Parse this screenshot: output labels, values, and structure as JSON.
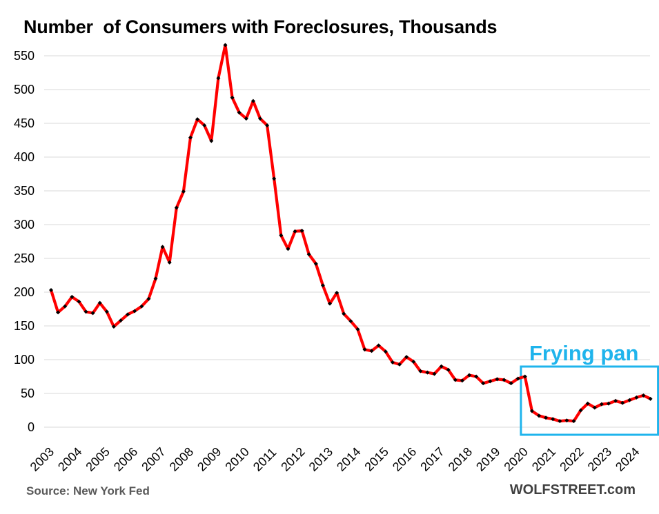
{
  "chart_data": {
    "type": "line",
    "title": "Number  of Consumers with Foreclosures, Thousands",
    "xlabel": "",
    "ylabel": "",
    "ylim": [
      0,
      550
    ],
    "yticks": [
      0,
      50,
      100,
      150,
      200,
      250,
      300,
      350,
      400,
      450,
      500,
      550
    ],
    "x_tick_labels": [
      "2003",
      "2004",
      "2005",
      "2006",
      "2007",
      "2008",
      "2009",
      "2010",
      "2011",
      "2012",
      "2013",
      "2014",
      "2015",
      "2016",
      "2017",
      "2018",
      "2019",
      "2020",
      "2021",
      "2022",
      "2023",
      "2024"
    ],
    "series": [
      {
        "name": "Consumers with foreclosures",
        "color": "#ff0000",
        "marker_color": "#000000",
        "values": [
          203,
          170,
          179,
          193,
          186,
          171,
          169,
          184,
          171,
          149,
          158,
          167,
          172,
          179,
          190,
          220,
          267,
          244,
          325,
          349,
          429,
          456,
          447,
          424,
          517,
          566,
          488,
          466,
          457,
          483,
          457,
          447,
          368,
          284,
          264,
          290,
          291,
          256,
          242,
          210,
          183,
          199,
          168,
          157,
          145,
          115,
          113,
          121,
          112,
          96,
          93,
          104,
          97,
          83,
          81,
          79,
          90,
          85,
          70,
          69,
          77,
          75,
          65,
          68,
          71,
          70,
          65,
          72,
          75,
          24,
          17,
          14,
          12,
          9,
          10,
          9,
          25,
          35,
          29,
          34,
          35,
          39,
          36,
          40,
          44,
          47,
          42
        ]
      }
    ],
    "annotations": [
      {
        "text": "Frying pan",
        "color": "#1fb4ec",
        "from_quarter": 69,
        "to_quarter": 86
      }
    ]
  },
  "footer": {
    "source": "Source: New York Fed",
    "brand": "WOLFSTREET.com"
  }
}
